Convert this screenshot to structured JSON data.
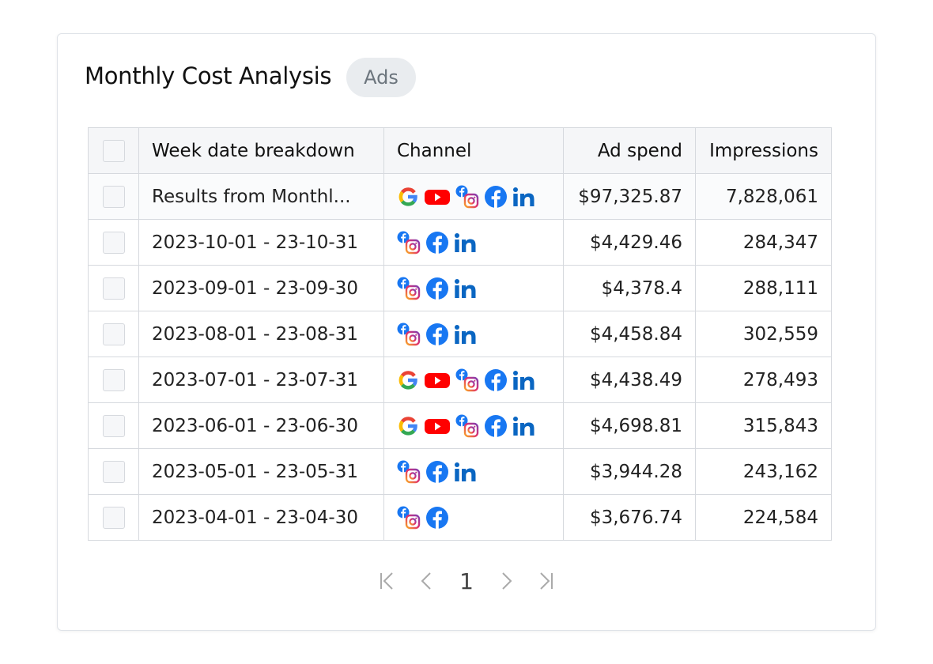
{
  "header": {
    "title": "Monthly Cost Analysis",
    "badge": "Ads"
  },
  "table": {
    "columns": [
      "Week date breakdown",
      "Channel",
      "Ad spend",
      "Impressions"
    ],
    "rows": [
      [
        "Results from Monthl...",
        "$97,325.87",
        "7,828,061"
      ],
      [
        "2023-10-01 - 23-10-31",
        "$4,429.46",
        "284,347"
      ],
      [
        "2023-09-01 - 23-09-30",
        "$4,378.4",
        "288,111"
      ],
      [
        "2023-08-01 - 23-08-31",
        "$4,458.84",
        "302,559"
      ],
      [
        "2023-07-01 - 23-07-31",
        "$4,438.49",
        "278,493"
      ],
      [
        "2023-06-01 - 23-06-30",
        "$4,698.81",
        "315,843"
      ],
      [
        "2023-05-01 - 23-05-31",
        "$3,944.28",
        "243,162"
      ],
      [
        "2023-04-01 - 23-04-30",
        "$3,676.74",
        "224,584"
      ]
    ]
  },
  "pagination": {
    "page": "1"
  }
}
